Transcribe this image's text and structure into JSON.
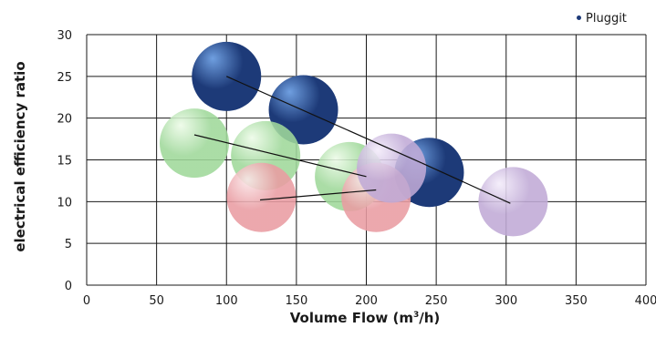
{
  "chart_data": {
    "type": "scatter",
    "xlabel": "Volume Flow (m³/h)",
    "xlabel_parts": {
      "pre": "Volume Flow (m",
      "sup": "3",
      "post": "/h)"
    },
    "ylabel": "electrical efficiency ratio",
    "xlim": [
      0,
      400
    ],
    "ylim": [
      0,
      30
    ],
    "xticks": [
      0,
      50,
      100,
      150,
      200,
      250,
      300,
      350,
      400
    ],
    "yticks": [
      0,
      5,
      10,
      15,
      20,
      25,
      30
    ],
    "grid": true,
    "legend_position": "top-right",
    "legend": [
      {
        "label": "Pluggit",
        "color": "#1d3a78"
      }
    ],
    "series": [
      {
        "name": "Pluggit",
        "color": "#1d3a78",
        "highlight": "#6f9fe0",
        "points": [
          {
            "x": 100,
            "y": 25
          },
          {
            "x": 155,
            "y": 21
          },
          {
            "x": 245,
            "y": 13.5
          }
        ],
        "lines": [
          [
            {
              "x": 100,
              "y": 25
            },
            {
              "x": 240,
              "y": 14.6
            }
          ],
          [
            {
              "x": 240,
              "y": 14.6
            },
            {
              "x": 303,
              "y": 9.8
            }
          ]
        ]
      },
      {
        "color": "#9fd89a",
        "highlight": "#edfbe8",
        "points": [
          {
            "x": 77,
            "y": 17
          },
          {
            "x": 128,
            "y": 15.5
          },
          {
            "x": 188,
            "y": 13
          }
        ],
        "lines": [
          [
            {
              "x": 77,
              "y": 18
            },
            {
              "x": 200,
              "y": 13
            }
          ]
        ]
      },
      {
        "color": "#e99ca2",
        "highlight": "#fbe7e9",
        "points": [
          {
            "x": 125,
            "y": 10.5
          },
          {
            "x": 207,
            "y": 10.5
          }
        ],
        "lines": [
          [
            {
              "x": 124,
              "y": 10.2
            },
            {
              "x": 207,
              "y": 11.4
            }
          ]
        ]
      },
      {
        "color": "#c0aad6",
        "highlight": "#f3ecfa",
        "points": [
          {
            "x": 218,
            "y": 14
          },
          {
            "x": 305,
            "y": 10
          }
        ],
        "lines": []
      }
    ]
  }
}
